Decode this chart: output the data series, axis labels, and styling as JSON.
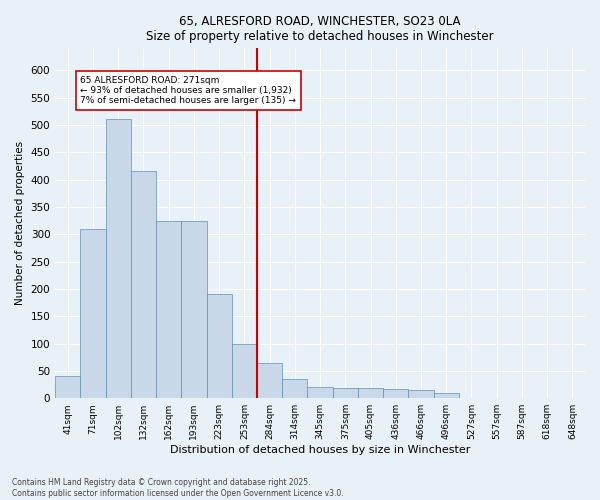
{
  "title_line1": "65, ALRESFORD ROAD, WINCHESTER, SO23 0LA",
  "title_line2": "Size of property relative to detached houses in Winchester",
  "xlabel": "Distribution of detached houses by size in Winchester",
  "ylabel": "Number of detached properties",
  "categories": [
    "41sqm",
    "71sqm",
    "102sqm",
    "132sqm",
    "162sqm",
    "193sqm",
    "223sqm",
    "253sqm",
    "284sqm",
    "314sqm",
    "345sqm",
    "375sqm",
    "405sqm",
    "436sqm",
    "466sqm",
    "496sqm",
    "527sqm",
    "557sqm",
    "587sqm",
    "618sqm",
    "648sqm"
  ],
  "values": [
    40,
    310,
    510,
    415,
    325,
    325,
    190,
    100,
    65,
    35,
    20,
    18,
    18,
    17,
    15,
    10,
    1,
    1,
    1,
    1,
    1
  ],
  "bar_color": "#c8d8e8",
  "bar_edge_color": "#6090b0",
  "vline_x_index": 8,
  "vline_color": "#cc0000",
  "annotation_title": "65 ALRESFORD ROAD: 271sqm",
  "annotation_line2": "← 93% of detached houses are smaller (1,932)",
  "annotation_line3": "7% of semi-detached houses are larger (135) →",
  "annotation_box_color": "#ffffff",
  "annotation_box_edge": "#cc0000",
  "ylim": [
    0,
    640
  ],
  "yticks": [
    0,
    50,
    100,
    150,
    200,
    250,
    300,
    350,
    400,
    450,
    500,
    550,
    600
  ],
  "bg_color": "#e8f0f8",
  "grid_color": "#ffffff",
  "footer_line1": "Contains HM Land Registry data © Crown copyright and database right 2025.",
  "footer_line2": "Contains public sector information licensed under the Open Government Licence v3.0."
}
